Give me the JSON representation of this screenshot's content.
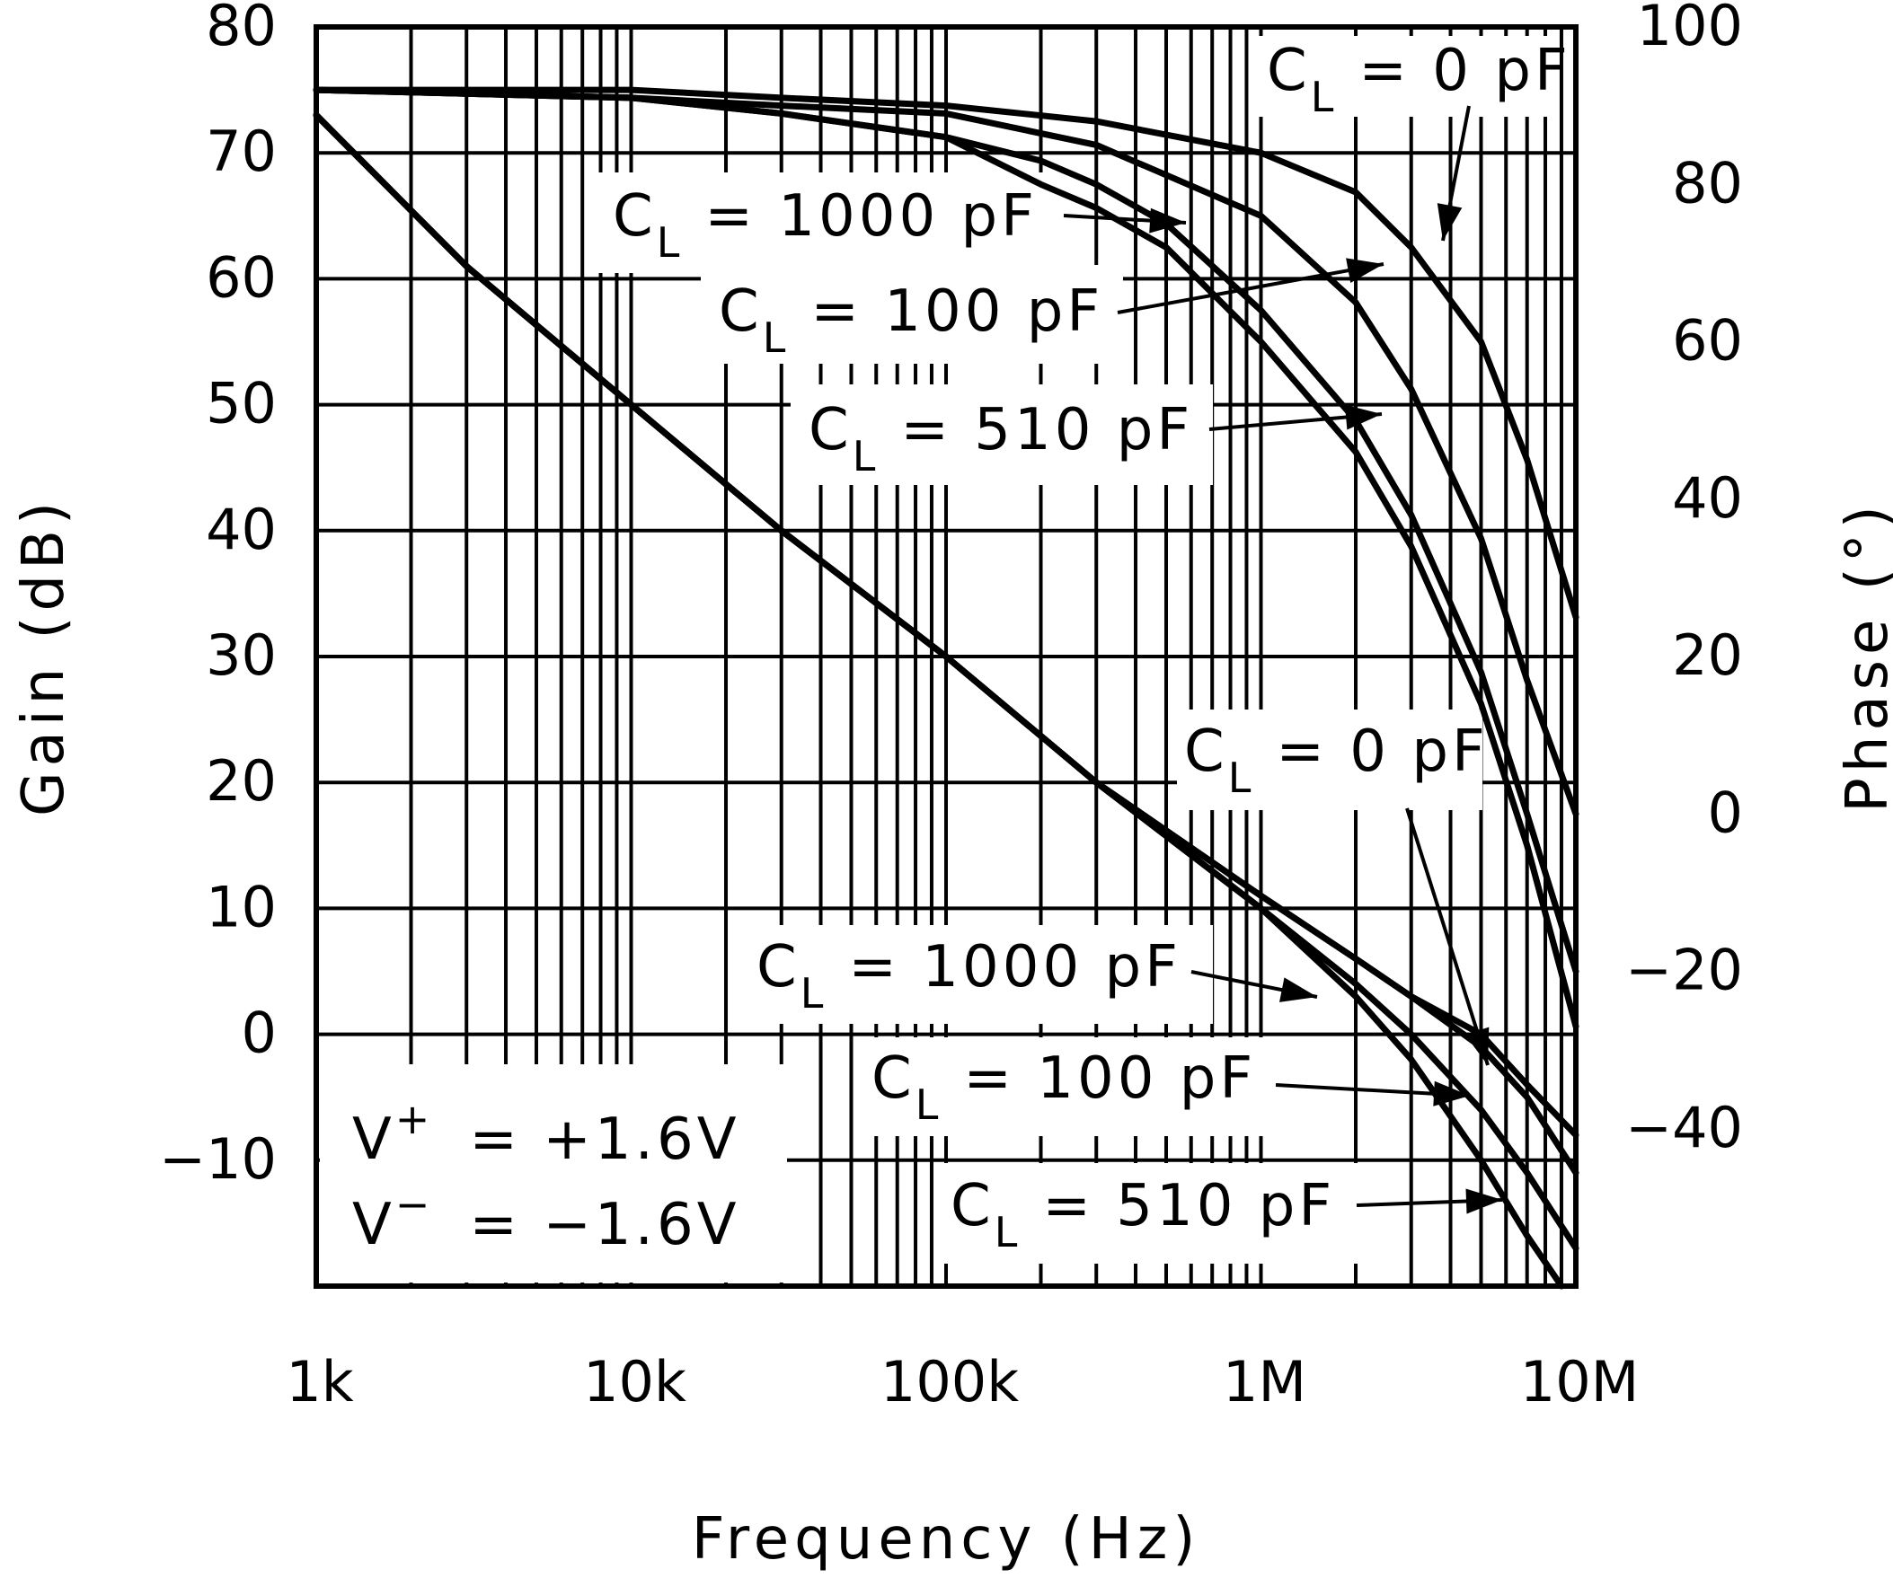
{
  "chart_data": {
    "type": "line",
    "xlabel": "Frequency (Hz)",
    "ylabel_left": "Gain (dB)",
    "ylabel_right": "Phase (°)",
    "x_scale": "log",
    "xlim": [
      1000,
      10000000
    ],
    "x_ticks": [
      {
        "value": 1000,
        "label": "1k"
      },
      {
        "value": 10000,
        "label": "10k"
      },
      {
        "value": 100000,
        "label": "100k"
      },
      {
        "value": 1000000,
        "label": "1M"
      },
      {
        "value": 10000000,
        "label": "10M"
      }
    ],
    "ylim_left": [
      -20,
      80
    ],
    "y_ticks_left": [
      {
        "value": 80,
        "label": "80"
      },
      {
        "value": 70,
        "label": "70"
      },
      {
        "value": 60,
        "label": "60"
      },
      {
        "value": 50,
        "label": "50"
      },
      {
        "value": 40,
        "label": "40"
      },
      {
        "value": 30,
        "label": "30"
      },
      {
        "value": 20,
        "label": "20"
      },
      {
        "value": 10,
        "label": "10"
      },
      {
        "value": 0,
        "label": "0"
      },
      {
        "value": -10,
        "label": "−10"
      }
    ],
    "ylim_right": [
      -60,
      100
    ],
    "y_ticks_right": [
      {
        "value": 100,
        "label": "100"
      },
      {
        "value": 80,
        "label": "80"
      },
      {
        "value": 60,
        "label": "60"
      },
      {
        "value": 40,
        "label": "40"
      },
      {
        "value": 20,
        "label": "20"
      },
      {
        "value": 0,
        "label": "0"
      },
      {
        "value": -20,
        "label": "−20"
      },
      {
        "value": -40,
        "label": "−40"
      }
    ],
    "grid": true,
    "gain_series": [
      {
        "name": "C_L = 0 pF",
        "x": [
          1000,
          3000,
          10000,
          30000,
          100000,
          300000,
          1000000,
          2000000,
          3000000,
          5000000,
          7000000,
          10000000
        ],
        "y": [
          73,
          61,
          50,
          40,
          30,
          20,
          11,
          6,
          3,
          -1,
          -5,
          -11
        ]
      },
      {
        "name": "C_L = 1000 pF",
        "x": [
          1000,
          3000,
          10000,
          30000,
          100000,
          300000,
          1000000,
          2000000,
          3000000,
          5000000,
          7000000,
          10000000
        ],
        "y": [
          73,
          61,
          50,
          40,
          30,
          20,
          11,
          6,
          3,
          0,
          -4,
          -8
        ]
      },
      {
        "name": "C_L = 100 pF",
        "x": [
          1000,
          3000,
          10000,
          30000,
          100000,
          300000,
          1000000,
          2000000,
          3000000,
          5000000,
          7000000,
          10000000
        ],
        "y": [
          73,
          61,
          50,
          40,
          30,
          20,
          10,
          4,
          0,
          -6,
          -11,
          -17
        ]
      },
      {
        "name": "C_L = 510 pF",
        "x": [
          1000,
          3000,
          10000,
          30000,
          100000,
          300000,
          1000000,
          2000000,
          3000000,
          5000000,
          7000000,
          9000000
        ],
        "y": [
          73,
          61,
          50,
          40,
          30,
          20,
          10,
          3,
          -2,
          -10,
          -16,
          -20
        ]
      }
    ],
    "phase_series": [
      {
        "name": "C_L = 0 pF",
        "x": [
          1000,
          10000,
          30000,
          100000,
          300000,
          1000000,
          2000000,
          3000000,
          5000000,
          7000000,
          10000000
        ],
        "y": [
          92,
          92,
          91,
          90,
          88,
          84,
          79,
          72,
          60,
          45,
          25
        ]
      },
      {
        "name": "C_L = 1000 pF",
        "x": [
          1000,
          10000,
          30000,
          100000,
          300000,
          1000000,
          2000000,
          3000000,
          5000000,
          7000000,
          10000000
        ],
        "y": [
          92,
          91,
          90,
          89,
          85,
          76,
          65,
          54,
          35,
          17,
          0
        ]
      },
      {
        "name": "C_L = 100 pF",
        "x": [
          1000,
          10000,
          30000,
          100000,
          200000,
          300000,
          500000,
          1000000,
          2000000,
          3000000,
          5000000,
          7000000,
          10000000
        ],
        "y": [
          92,
          91,
          89,
          86,
          80,
          77,
          72,
          60,
          46,
          34,
          14,
          -4,
          -27
        ]
      },
      {
        "name": "C_L = 510 pF",
        "x": [
          1000,
          10000,
          30000,
          100000,
          200000,
          300000,
          500000,
          1000000,
          2000000,
          3000000,
          5000000,
          7000000,
          10000000
        ],
        "y": [
          92,
          91,
          89,
          86,
          83,
          80,
          75,
          64,
          50,
          38,
          18,
          0,
          -20
        ]
      }
    ],
    "annotations": {
      "phase_0pf": "= 0 pF",
      "phase_1000pf": "= 1000 pF",
      "phase_100pf": "= 100 pF",
      "phase_510pf": "= 510 pF",
      "gain_0pf": "= 0 pF",
      "gain_1000pf": "= 1000 pF",
      "gain_100pf": "= 100 pF",
      "gain_510pf": "= 510 pF",
      "cl_main": "C",
      "cl_sub": "L"
    },
    "supply": {
      "v_letter": "V",
      "vplus_sup": "+",
      "vminus_sup": "−",
      "vplus_value": "=  +1.6V",
      "vminus_value": "=  −1.6V"
    }
  }
}
